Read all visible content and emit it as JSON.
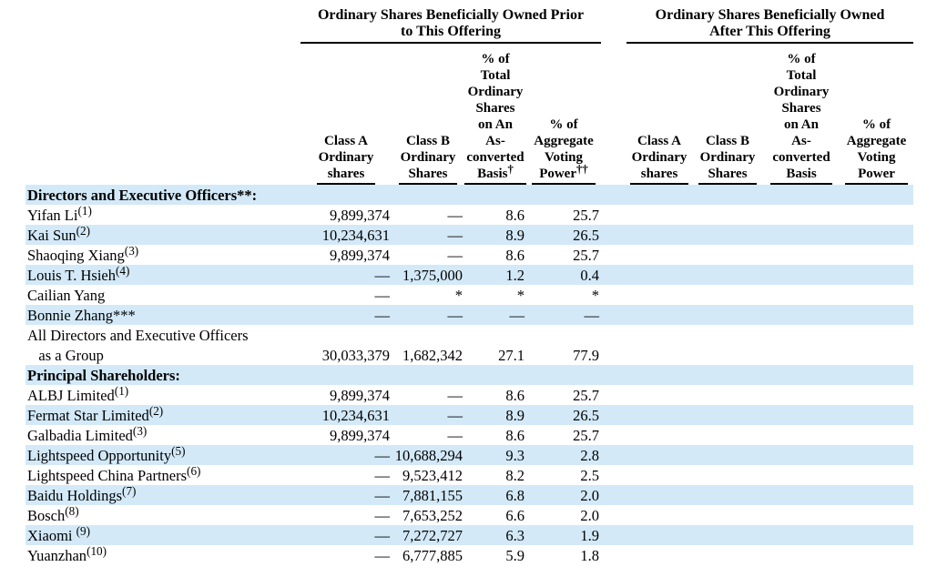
{
  "document": {
    "kind": "beneficial-ownership-table"
  },
  "colors": {
    "stripe": "#d3e9f8",
    "text": "#000000",
    "rule": "#000000",
    "background": "#ffffff"
  },
  "table": {
    "groups": [
      {
        "label": "Ordinary Shares Beneficially Owned Prior\nto This Offering"
      },
      {
        "label": "Ordinary Shares Beneficially Owned\nAfter This Offering"
      }
    ],
    "columns": [
      {
        "label": "Class A\nOrdinary\nshares",
        "sup": ""
      },
      {
        "label": "Class B\nOrdinary\nShares",
        "sup": ""
      },
      {
        "label": "% of Total\nOrdinary\nShares\non An\nAs-\nconverted\nBasis",
        "sup": "†"
      },
      {
        "label": "% of\nAggregate\nVoting\nPower",
        "sup": "††"
      },
      {
        "label": "Class A\nOrdinary\nshares",
        "sup": ""
      },
      {
        "label": "Class B\nOrdinary\nShares",
        "sup": ""
      },
      {
        "label": "% of\nTotal\nOrdinary\nShares\non An\nAs-\nconverted\nBasis",
        "sup": ""
      },
      {
        "label": "% of\nAggregate\nVoting\nPower",
        "sup": ""
      }
    ],
    "rows": [
      {
        "type": "section",
        "name": "Directors and Executive Officers**:",
        "sup": "",
        "shaded": true,
        "values": [
          "",
          "",
          "",
          "",
          "",
          "",
          "",
          ""
        ]
      },
      {
        "type": "item",
        "name": "Yifan Li",
        "sup": "(1)",
        "shaded": false,
        "values": [
          "9,899,374",
          "—",
          "8.6",
          "25.7",
          "",
          "",
          "",
          ""
        ]
      },
      {
        "type": "item",
        "name": "Kai Sun",
        "sup": "(2)",
        "shaded": true,
        "values": [
          "10,234,631",
          "—",
          "8.9",
          "26.5",
          "",
          "",
          "",
          ""
        ]
      },
      {
        "type": "item",
        "name": "Shaoqing Xiang",
        "sup": "(3)",
        "shaded": false,
        "values": [
          "9,899,374",
          "—",
          "8.6",
          "25.7",
          "",
          "",
          "",
          ""
        ]
      },
      {
        "type": "item",
        "name": "Louis T. Hsieh",
        "sup": "(4)",
        "shaded": true,
        "values": [
          "—",
          "1,375,000",
          "1.2",
          "0.4",
          "",
          "",
          "",
          ""
        ]
      },
      {
        "type": "item",
        "name": "Cailian Yang",
        "sup": "",
        "shaded": false,
        "values": [
          "—",
          "*",
          "*",
          "*",
          "",
          "",
          "",
          ""
        ]
      },
      {
        "type": "item",
        "name": "Bonnie Zhang***",
        "sup": "",
        "shaded": true,
        "values": [
          "—",
          "—",
          "—",
          "—",
          "",
          "",
          "",
          ""
        ]
      },
      {
        "type": "item",
        "name": "All Directors and Executive Officers\n   as a Group",
        "sup": "",
        "shaded": false,
        "values": [
          "30,033,379",
          "1,682,342",
          "27.1",
          "77.9",
          "",
          "",
          "",
          ""
        ]
      },
      {
        "type": "section",
        "name": "Principal Shareholders:",
        "sup": "",
        "shaded": true,
        "values": [
          "",
          "",
          "",
          "",
          "",
          "",
          "",
          ""
        ]
      },
      {
        "type": "item",
        "name": "ALBJ Limited",
        "sup": "(1)",
        "shaded": false,
        "values": [
          "9,899,374",
          "—",
          "8.6",
          "25.7",
          "",
          "",
          "",
          ""
        ]
      },
      {
        "type": "item",
        "name": "Fermat Star Limited",
        "sup": "(2)",
        "shaded": true,
        "values": [
          "10,234,631",
          "—",
          "8.9",
          "26.5",
          "",
          "",
          "",
          ""
        ]
      },
      {
        "type": "item",
        "name": "Galbadia Limited",
        "sup": "(3)",
        "shaded": false,
        "values": [
          "9,899,374",
          "—",
          "8.6",
          "25.7",
          "",
          "",
          "",
          ""
        ]
      },
      {
        "type": "item",
        "name": "Lightspeed Opportunity",
        "sup": "(5)",
        "shaded": true,
        "values": [
          "—",
          "10,688,294",
          "9.3",
          "2.8",
          "",
          "",
          "",
          ""
        ]
      },
      {
        "type": "item",
        "name": "Lightspeed China Partners",
        "sup": "(6)",
        "shaded": false,
        "values": [
          "—",
          "9,523,412",
          "8.2",
          "2.5",
          "",
          "",
          "",
          ""
        ]
      },
      {
        "type": "item",
        "name": "Baidu Holdings",
        "sup": "(7)",
        "shaded": true,
        "values": [
          "—",
          "7,881,155",
          "6.8",
          "2.0",
          "",
          "",
          "",
          ""
        ]
      },
      {
        "type": "item",
        "name": "Bosch",
        "sup": "(8)",
        "shaded": false,
        "values": [
          "—",
          "7,653,252",
          "6.6",
          "2.0",
          "",
          "",
          "",
          ""
        ]
      },
      {
        "type": "item",
        "name": "Xiaomi ",
        "sup": "(9)",
        "shaded": true,
        "values": [
          "—",
          "7,272,727",
          "6.3",
          "1.9",
          "",
          "",
          "",
          ""
        ]
      },
      {
        "type": "item",
        "name": "Yuanzhan",
        "sup": "(10)",
        "shaded": false,
        "values": [
          "—",
          "6,777,885",
          "5.9",
          "1.8",
          "",
          "",
          "",
          ""
        ]
      }
    ]
  }
}
